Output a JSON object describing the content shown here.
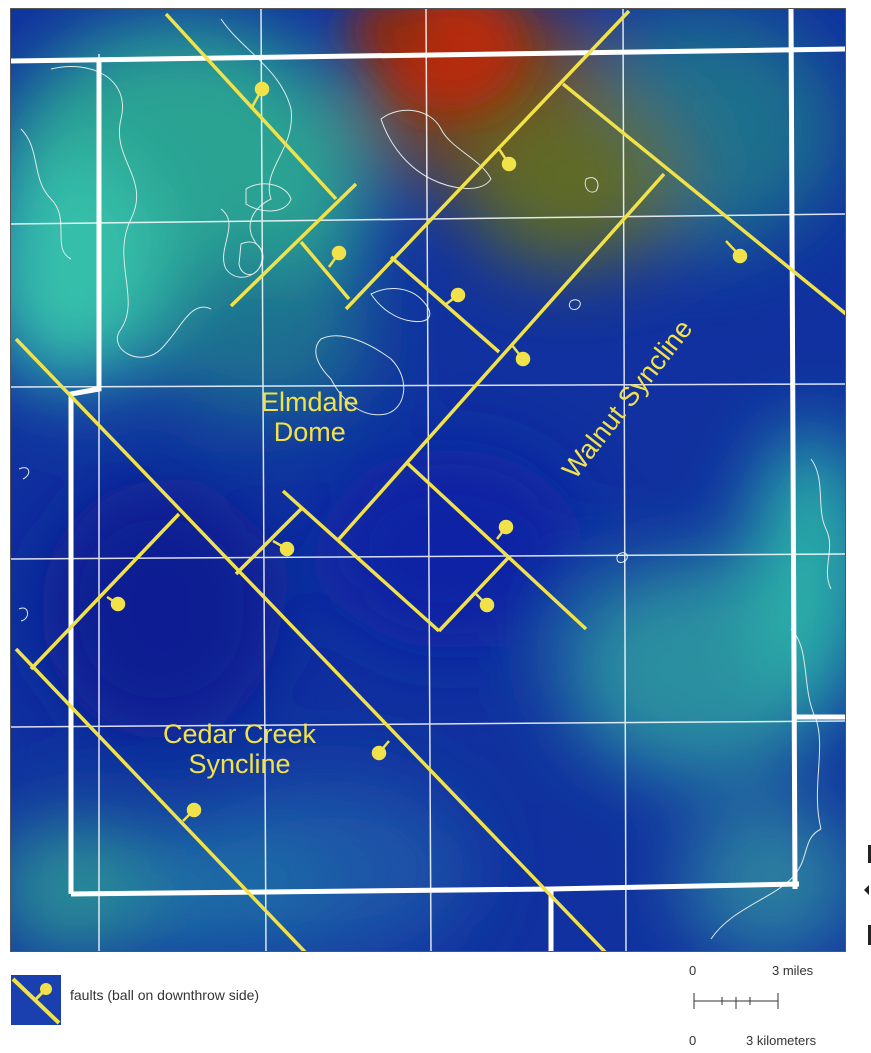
{
  "map": {
    "labels": {
      "elmdale": [
        "Elmdale",
        "Dome"
      ],
      "walnut": "Walnut Syncline",
      "cedar": [
        "Cedar Creek",
        "Syncline"
      ]
    },
    "colors": {
      "fault": "#f2e24a",
      "road": "#ffffff",
      "contour": "#dfe9e6",
      "high": "#9a2c10",
      "low": "#0f2aa0",
      "mid": "#2fa99a"
    }
  },
  "legend": {
    "fault_label": "faults (ball on downthrow side)",
    "fault_icon": "fault-line-with-ball-icon"
  },
  "scale": {
    "miles_zero": "0",
    "miles_label": "3 miles",
    "km_zero": "0",
    "km_label": "3 kilometers"
  }
}
